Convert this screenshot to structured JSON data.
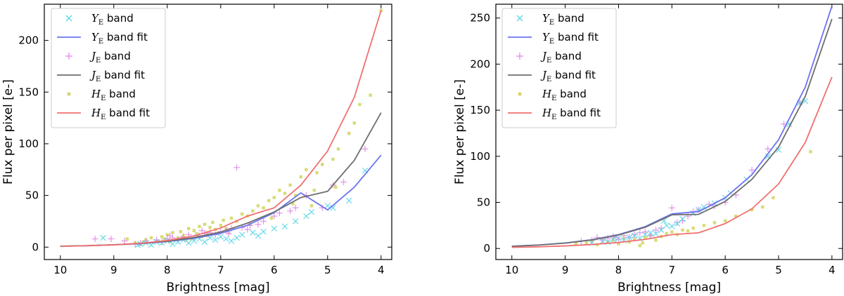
{
  "chart_data": [
    {
      "type": "scatter",
      "xlabel": "Brightness [mag]",
      "ylabel": "Flux per pixel [e-]",
      "xlim": [
        10.3,
        3.8
      ],
      "ylim": [
        -12,
        235
      ],
      "xticks": [
        10,
        9,
        8,
        7,
        6,
        5,
        4
      ],
      "yticks": [
        0,
        50,
        100,
        150,
        200
      ],
      "legend_position": "top-left",
      "legend": [
        {
          "key": "Y_pts",
          "kind": "marker-x",
          "sym": "Y",
          "sub": "E",
          "text": " band",
          "color": "#5bd6e8"
        },
        {
          "key": "Y_fit",
          "kind": "line",
          "sym": "Y",
          "sub": "E",
          "text": " band fit",
          "color": "#6a74f0"
        },
        {
          "key": "J_pts",
          "kind": "marker-plus",
          "sym": "J",
          "sub": "E",
          "text": " band",
          "color": "#e08ae8"
        },
        {
          "key": "J_fit",
          "kind": "line",
          "sym": "J",
          "sub": "E",
          "text": " band fit",
          "color": "#6e6e6e"
        },
        {
          "key": "H_pts",
          "kind": "marker-dot",
          "sym": "H",
          "sub": "E",
          "text": " band",
          "color": "#c8cc3a"
        },
        {
          "key": "H_fit",
          "kind": "line",
          "sym": "H",
          "sub": "E",
          "text": " band fit",
          "color": "#f07070"
        }
      ],
      "fit_x": [
        10,
        9.5,
        9,
        8.5,
        8,
        7.5,
        7,
        6.5,
        6,
        5.5,
        5,
        4.5,
        4
      ],
      "series": [
        {
          "name": "Y_E band fit",
          "values": [
            0.9,
            1.4,
            2.2,
            3.4,
            5.4,
            8.5,
            13.4,
            21.1,
            33.3,
            52.5,
            36,
            58,
            89
          ]
        },
        {
          "name": "J_E band fit",
          "values": [
            0.9,
            1.4,
            2.3,
            3.6,
            5.7,
            9.2,
            14.6,
            23.2,
            34,
            48,
            54,
            84,
            130
          ]
        },
        {
          "name": "H_E band fit",
          "values": [
            0.7,
            1.3,
            2.2,
            3.7,
            6.4,
            10.8,
            18.5,
            30,
            38,
            60,
            93,
            145,
            229
          ]
        }
      ],
      "scatter": {
        "Y": [
          [
            9.2,
            9
          ],
          [
            8.55,
            2
          ],
          [
            8.5,
            3
          ],
          [
            8.4,
            4
          ],
          [
            8.3,
            2
          ],
          [
            8.2,
            5
          ],
          [
            8.1,
            4
          ],
          [
            8.0,
            6
          ],
          [
            7.9,
            3
          ],
          [
            7.8,
            5
          ],
          [
            7.7,
            7
          ],
          [
            7.6,
            4
          ],
          [
            7.5,
            6
          ],
          [
            7.4,
            8
          ],
          [
            7.3,
            5
          ],
          [
            7.2,
            9
          ],
          [
            7.1,
            7
          ],
          [
            7.0,
            10
          ],
          [
            6.9,
            8
          ],
          [
            6.8,
            6
          ],
          [
            6.6,
            12
          ],
          [
            6.4,
            14
          ],
          [
            6.2,
            15
          ],
          [
            6.0,
            18
          ],
          [
            5.8,
            20
          ],
          [
            5.6,
            25
          ],
          [
            5.4,
            30
          ],
          [
            5.3,
            34
          ],
          [
            5.0,
            40
          ],
          [
            4.9,
            38
          ],
          [
            4.6,
            45
          ],
          [
            4.3,
            74
          ],
          [
            6.3,
            11
          ],
          [
            6.7,
            9
          ]
        ],
        "J": [
          [
            9.35,
            8
          ],
          [
            9.05,
            8
          ],
          [
            8.8,
            6
          ],
          [
            8.5,
            4
          ],
          [
            8.4,
            6
          ],
          [
            8.2,
            7
          ],
          [
            8.1,
            5
          ],
          [
            8.0,
            8
          ],
          [
            7.9,
            9
          ],
          [
            7.8,
            7
          ],
          [
            7.7,
            10
          ],
          [
            7.6,
            12
          ],
          [
            7.5,
            9
          ],
          [
            7.4,
            11
          ],
          [
            7.3,
            13
          ],
          [
            7.2,
            14
          ],
          [
            7.1,
            12
          ],
          [
            7.0,
            15
          ],
          [
            6.9,
            16
          ],
          [
            6.85,
            13
          ],
          [
            6.8,
            18
          ],
          [
            6.7,
            77
          ],
          [
            6.6,
            19
          ],
          [
            6.5,
            17
          ],
          [
            6.3,
            22
          ],
          [
            6.2,
            25
          ],
          [
            6.0,
            30
          ],
          [
            5.9,
            33
          ],
          [
            5.7,
            35
          ],
          [
            5.6,
            38
          ],
          [
            5.4,
            50
          ],
          [
            5.1,
            38
          ],
          [
            4.9,
            60
          ],
          [
            4.7,
            63
          ],
          [
            4.3,
            95
          ],
          [
            8.6,
            3
          ],
          [
            7.95,
            11
          ],
          [
            7.35,
            16
          ],
          [
            6.45,
            21
          ]
        ],
        "H": [
          [
            8.75,
            8
          ],
          [
            8.6,
            4
          ],
          [
            8.5,
            3
          ],
          [
            8.4,
            7
          ],
          [
            8.3,
            9
          ],
          [
            8.2,
            6
          ],
          [
            8.1,
            10
          ],
          [
            8.0,
            12
          ],
          [
            7.95,
            5
          ],
          [
            7.9,
            14
          ],
          [
            7.8,
            9
          ],
          [
            7.75,
            15
          ],
          [
            7.7,
            11
          ],
          [
            7.6,
            18
          ],
          [
            7.55,
            8
          ],
          [
            7.5,
            16
          ],
          [
            7.45,
            13
          ],
          [
            7.4,
            20
          ],
          [
            7.35,
            10
          ],
          [
            7.3,
            22
          ],
          [
            7.25,
            14
          ],
          [
            7.2,
            19
          ],
          [
            7.15,
            24
          ],
          [
            7.1,
            17
          ],
          [
            7.0,
            21
          ],
          [
            6.95,
            26
          ],
          [
            6.9,
            18
          ],
          [
            6.8,
            28
          ],
          [
            6.7,
            25
          ],
          [
            6.6,
            32
          ],
          [
            6.5,
            30
          ],
          [
            6.4,
            35
          ],
          [
            6.3,
            40
          ],
          [
            6.2,
            38
          ],
          [
            6.1,
            45
          ],
          [
            6.0,
            48
          ],
          [
            5.9,
            55
          ],
          [
            5.8,
            52
          ],
          [
            5.7,
            60
          ],
          [
            5.6,
            50
          ],
          [
            5.5,
            68
          ],
          [
            5.4,
            75
          ],
          [
            5.3,
            40
          ],
          [
            5.2,
            72
          ],
          [
            5.1,
            80
          ],
          [
            4.9,
            85
          ],
          [
            4.8,
            95
          ],
          [
            4.6,
            110
          ],
          [
            4.5,
            120
          ],
          [
            4.4,
            138
          ],
          [
            4.2,
            147
          ],
          [
            4.0,
            229
          ],
          [
            8.45,
            5
          ],
          [
            8.05,
            8
          ],
          [
            7.65,
            7
          ],
          [
            7.25,
            11
          ],
          [
            6.85,
            15
          ],
          [
            6.45,
            22
          ],
          [
            6.05,
            28
          ],
          [
            5.65,
            42
          ],
          [
            5.25,
            55
          ],
          [
            4.85,
            58
          ]
        ]
      }
    },
    {
      "type": "scatter",
      "xlabel": "Brightness [mag]",
      "ylabel": "Flux per pixel [e-]",
      "xlim": [
        10.3,
        3.8
      ],
      "ylim": [
        -12,
        265
      ],
      "xticks": [
        10,
        9,
        8,
        7,
        6,
        5,
        4
      ],
      "yticks": [
        0,
        50,
        100,
        150,
        200,
        250
      ],
      "legend_position": "top-left",
      "legend": [
        {
          "key": "Y_pts",
          "kind": "marker-x",
          "sym": "Y",
          "sub": "E",
          "text": " band",
          "color": "#5bd6e8"
        },
        {
          "key": "Y_fit",
          "kind": "line",
          "sym": "Y",
          "sub": "E",
          "text": " band fit",
          "color": "#6a74f0"
        },
        {
          "key": "J_pts",
          "kind": "marker-plus",
          "sym": "J",
          "sub": "E",
          "text": " band",
          "color": "#e08ae8"
        },
        {
          "key": "J_fit",
          "kind": "line",
          "sym": "J",
          "sub": "E",
          "text": " band fit",
          "color": "#6e6e6e"
        },
        {
          "key": "H_pts",
          "kind": "marker-dot",
          "sym": "H",
          "sub": "E",
          "text": " band",
          "color": "#c8cc3a"
        },
        {
          "key": "H_fit",
          "kind": "line",
          "sym": "H",
          "sub": "E",
          "text": " band fit",
          "color": "#f07070"
        }
      ],
      "fit_x": [
        10,
        9.5,
        9,
        8.5,
        8,
        7.5,
        7,
        6.5,
        6,
        5.5,
        5,
        4.5,
        4
      ],
      "series": [
        {
          "name": "Y_E band fit",
          "values": [
            2.4,
            3.8,
            6,
            9.5,
            15,
            23.7,
            37.5,
            40,
            55,
            80,
            118,
            175,
            263
          ]
        },
        {
          "name": "J_E band fit",
          "values": [
            2.3,
            3.7,
            5.8,
            9.2,
            14.6,
            23,
            36.5,
            37,
            51,
            75,
            110,
            165,
            249
          ]
        },
        {
          "name": "H_E band fit",
          "values": [
            1.2,
            1.8,
            2.8,
            4.3,
            6.5,
            9.9,
            15,
            17,
            27,
            43,
            70,
            115,
            186
          ]
        }
      ],
      "scatter": {
        "Y": [
          [
            8.5,
            6
          ],
          [
            8.3,
            8
          ],
          [
            8.2,
            7
          ],
          [
            8.1,
            10
          ],
          [
            8.0,
            11
          ],
          [
            7.9,
            9
          ],
          [
            7.8,
            12
          ],
          [
            7.7,
            14
          ],
          [
            7.6,
            11
          ],
          [
            7.5,
            15
          ],
          [
            7.4,
            17
          ],
          [
            7.3,
            16
          ],
          [
            7.2,
            20
          ],
          [
            7.1,
            25
          ],
          [
            7.0,
            24
          ],
          [
            6.9,
            27
          ],
          [
            6.8,
            32
          ],
          [
            6.6,
            38
          ],
          [
            6.5,
            42
          ],
          [
            6.4,
            45
          ],
          [
            6.2,
            49
          ],
          [
            6.0,
            55
          ],
          [
            5.9,
            60
          ],
          [
            5.6,
            75
          ],
          [
            5.2,
            100
          ],
          [
            5.0,
            107
          ],
          [
            4.8,
            135
          ],
          [
            4.6,
            158
          ],
          [
            4.5,
            160
          ],
          [
            7.15,
            30
          ]
        ],
        "J": [
          [
            8.7,
            8
          ],
          [
            8.5,
            9
          ],
          [
            8.4,
            12
          ],
          [
            8.3,
            9
          ],
          [
            8.2,
            11
          ],
          [
            8.1,
            13
          ],
          [
            8.0,
            10
          ],
          [
            7.9,
            14
          ],
          [
            7.8,
            12
          ],
          [
            7.7,
            15
          ],
          [
            7.6,
            17
          ],
          [
            7.5,
            18
          ],
          [
            7.4,
            14
          ],
          [
            7.3,
            20
          ],
          [
            7.2,
            22
          ],
          [
            7.0,
            44
          ],
          [
            6.9,
            28
          ],
          [
            6.8,
            30
          ],
          [
            6.7,
            35
          ],
          [
            6.6,
            40
          ],
          [
            6.5,
            42
          ],
          [
            6.3,
            48
          ],
          [
            6.2,
            46
          ],
          [
            6.0,
            50
          ],
          [
            5.8,
            58
          ],
          [
            5.5,
            85
          ],
          [
            5.2,
            108
          ],
          [
            4.9,
            135
          ],
          [
            4.6,
            158
          ],
          [
            8.05,
            12
          ]
        ],
        "H": [
          [
            8.8,
            5
          ],
          [
            8.6,
            6
          ],
          [
            8.5,
            8
          ],
          [
            8.4,
            4
          ],
          [
            8.3,
            10
          ],
          [
            8.2,
            7
          ],
          [
            8.1,
            9
          ],
          [
            8.0,
            5
          ],
          [
            7.9,
            11
          ],
          [
            7.8,
            7
          ],
          [
            7.7,
            10
          ],
          [
            7.6,
            3
          ],
          [
            7.5,
            12
          ],
          [
            7.4,
            14
          ],
          [
            7.3,
            9
          ],
          [
            7.2,
            13
          ],
          [
            7.1,
            16
          ],
          [
            7.0,
            18
          ],
          [
            6.9,
            15
          ],
          [
            6.8,
            20
          ],
          [
            6.6,
            22
          ],
          [
            6.4,
            25
          ],
          [
            6.2,
            28
          ],
          [
            6.0,
            30
          ],
          [
            5.8,
            35
          ],
          [
            5.5,
            42
          ],
          [
            5.3,
            45
          ],
          [
            5.1,
            55
          ],
          [
            4.4,
            105
          ],
          [
            7.55,
            6
          ],
          [
            6.7,
            19
          ]
        ]
      }
    }
  ]
}
